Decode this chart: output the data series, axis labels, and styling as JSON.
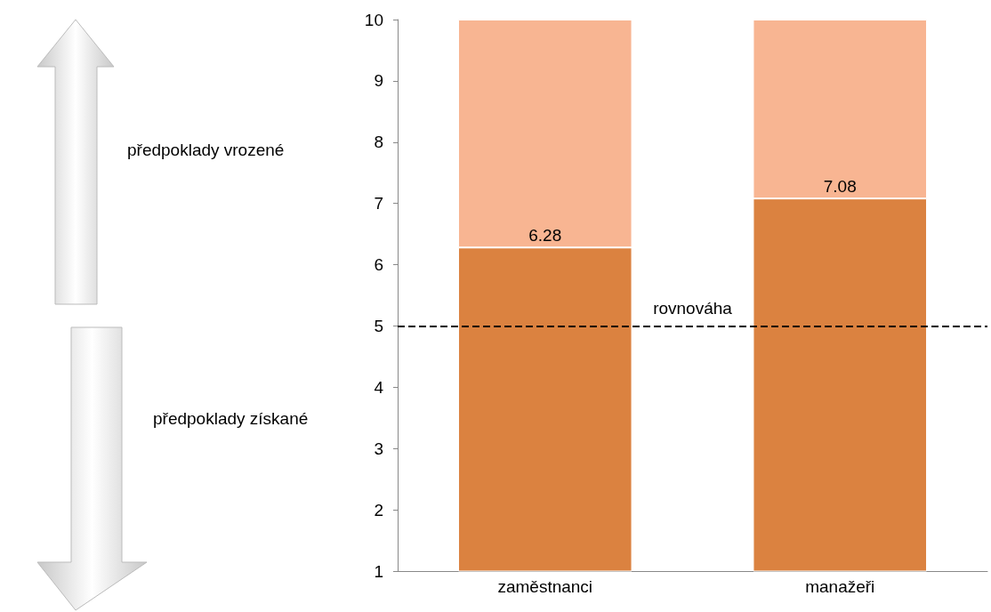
{
  "chart_data": {
    "type": "bar",
    "stacked": true,
    "categories": [
      "zaměstnanci",
      "manažeři"
    ],
    "series": [
      {
        "color": "#db8240",
        "values": [
          6.28,
          7.08
        ],
        "value_labels": [
          "6.28",
          "7.08"
        ]
      },
      {
        "color": "#f8b592",
        "values": [
          3.72,
          2.92
        ]
      }
    ],
    "ylim": [
      1,
      10
    ],
    "yticks": [
      1,
      2,
      3,
      4,
      5,
      6,
      7,
      8,
      9,
      10
    ],
    "grid": false,
    "ref_lines": [
      {
        "axis": "y",
        "value": 5,
        "label": "rovnováha",
        "color": "#000000",
        "line_style": "dashed"
      }
    ],
    "annotations": [
      "předpoklady vrozené",
      "předpoklady získané"
    ]
  }
}
